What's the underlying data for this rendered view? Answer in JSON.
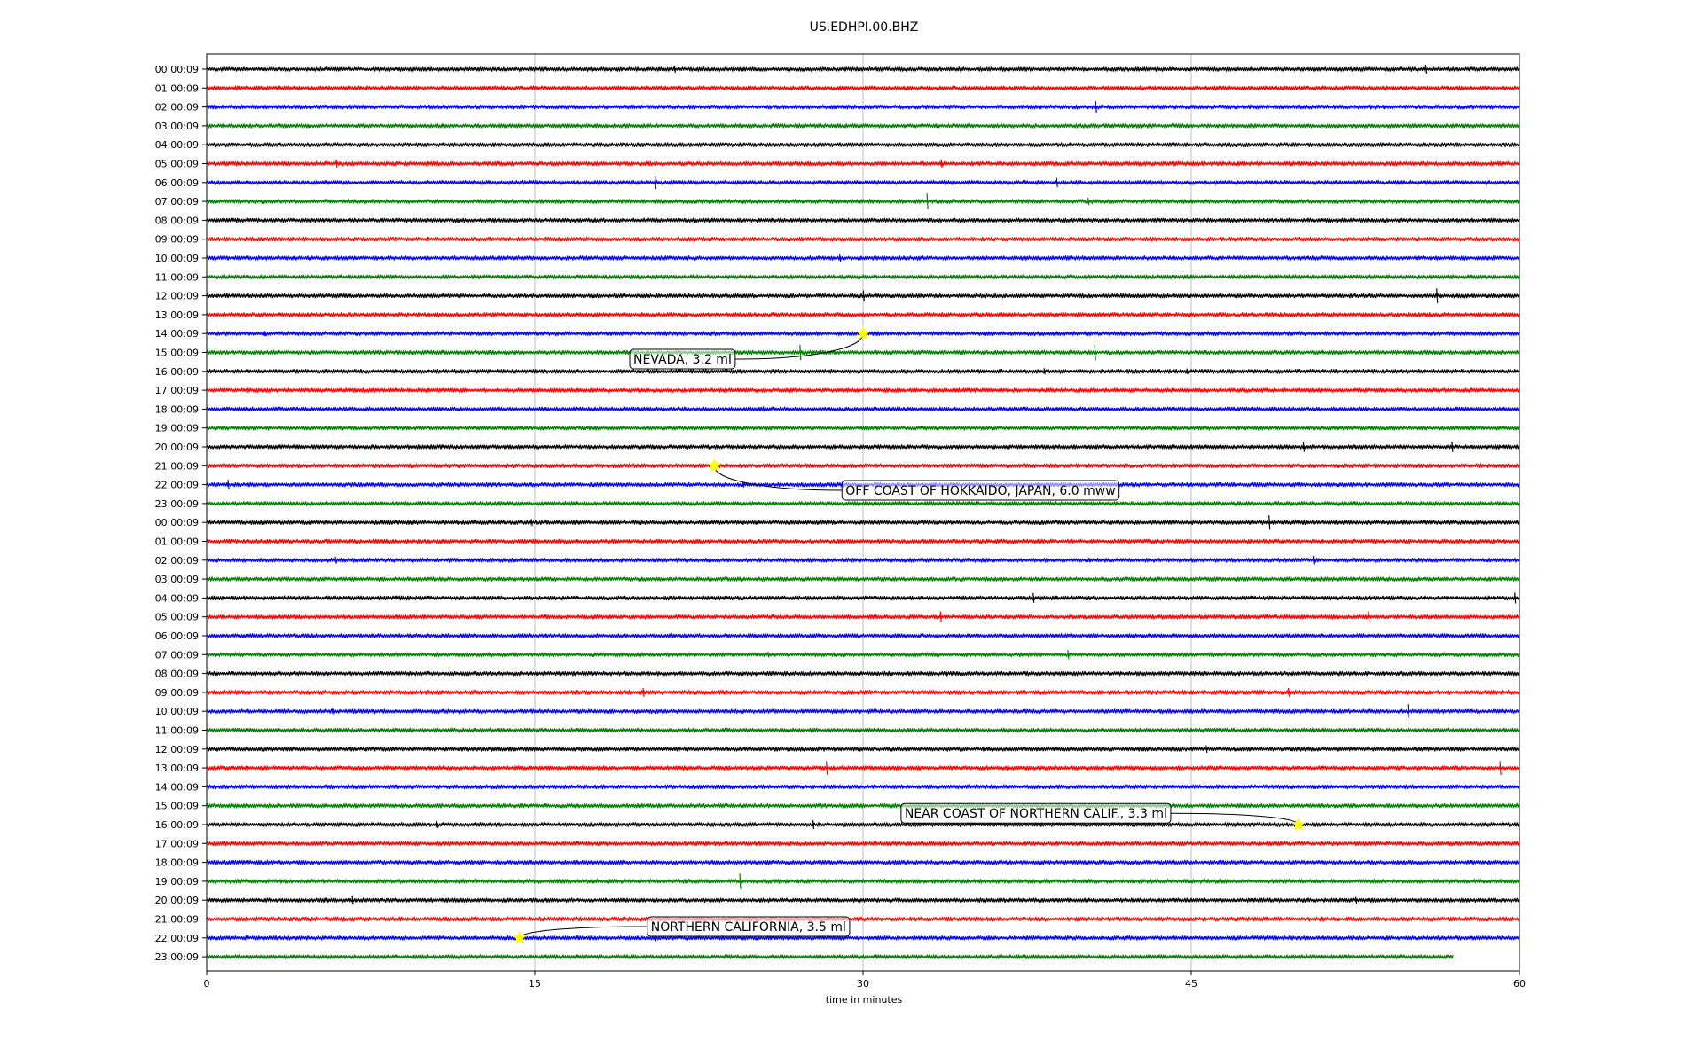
{
  "chart_data": {
    "type": "line",
    "title": "US.EDHPI.00.BHZ",
    "xlabel": "time in minutes",
    "ylabel": "",
    "xlim": [
      0,
      60
    ],
    "x_ticks": [
      0,
      15,
      30,
      45,
      60
    ],
    "grid": "vertical",
    "trace_colors": [
      "#000000",
      "#ff0000",
      "#0000ff",
      "#008000"
    ],
    "marker_color": "#ffff00",
    "rows": [
      "00:00:09",
      "01:00:09",
      "02:00:09",
      "03:00:09",
      "04:00:09",
      "05:00:09",
      "06:00:09",
      "07:00:09",
      "08:00:09",
      "09:00:09",
      "10:00:09",
      "11:00:09",
      "12:00:09",
      "13:00:09",
      "14:00:09",
      "15:00:09",
      "16:00:09",
      "17:00:09",
      "18:00:09",
      "19:00:09",
      "20:00:09",
      "21:00:09",
      "22:00:09",
      "23:00:09",
      "00:00:09",
      "01:00:09",
      "02:00:09",
      "03:00:09",
      "04:00:09",
      "05:00:09",
      "06:00:09",
      "07:00:09",
      "08:00:09",
      "09:00:09",
      "10:00:09",
      "11:00:09",
      "12:00:09",
      "13:00:09",
      "14:00:09",
      "15:00:09",
      "16:00:09",
      "17:00:09",
      "18:00:09",
      "19:00:09",
      "20:00:09",
      "21:00:09",
      "22:00:09",
      "23:00:09"
    ],
    "last_row_end_minute": 57,
    "events": [
      {
        "label": "NEVADA, 3.2 ml",
        "row": 14,
        "minute": 30.0,
        "text_row": 15.35,
        "text_minute": 19.5
      },
      {
        "label": "OFF COAST OF HOKKAIDO, JAPAN, 6.0 mww",
        "row": 21,
        "minute": 23.2,
        "text_row": 22.3,
        "text_minute": 29.2
      },
      {
        "label": "NEAR COAST OF NORTHERN CALIF., 3.3 ml",
        "row": 40,
        "minute": 49.9,
        "text_row": 39.4,
        "text_minute": 31.9
      },
      {
        "label": "NORTHERN CALIFORNIA, 3.5 ml",
        "row": 46,
        "minute": 14.3,
        "text_row": 45.4,
        "text_minute": 20.3
      }
    ]
  }
}
